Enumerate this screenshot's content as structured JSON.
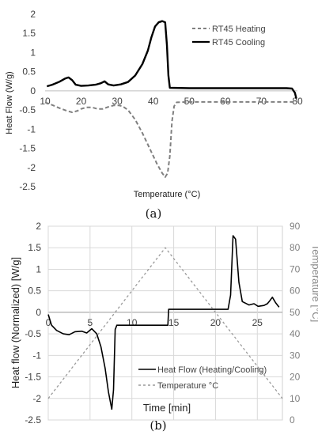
{
  "chart_data": [
    {
      "panel": "(a)",
      "type": "line",
      "xlabel": "Temperature (°C)",
      "ylabel": "Heat Flow (W/g)",
      "xlim": [
        10,
        80
      ],
      "ylim": [
        -2.5,
        2
      ],
      "x_ticks": [
        "10",
        "20",
        "30",
        "40",
        "50",
        "60",
        "70",
        "80"
      ],
      "y_ticks": [
        "2",
        "1.5",
        "1",
        "0.5",
        "0",
        "-0.5",
        "-1",
        "-1.5",
        "-2",
        "-2.5"
      ],
      "legend_position": "top-right",
      "series": [
        {
          "name": "RT45 Heating",
          "style": "dashed",
          "color": "#808080",
          "points": [
            [
              10,
              -0.3
            ],
            [
              12,
              -0.37
            ],
            [
              14,
              -0.45
            ],
            [
              16,
              -0.52
            ],
            [
              17.5,
              -0.56
            ],
            [
              19,
              -0.52
            ],
            [
              20,
              -0.47
            ],
            [
              21.5,
              -0.43
            ],
            [
              23,
              -0.43
            ],
            [
              24.5,
              -0.47
            ],
            [
              26,
              -0.47
            ],
            [
              27.5,
              -0.42
            ],
            [
              29,
              -0.38
            ],
            [
              30.5,
              -0.38
            ],
            [
              31.5,
              -0.4
            ],
            [
              33,
              -0.5
            ],
            [
              35,
              -0.75
            ],
            [
              37,
              -1.1
            ],
            [
              39,
              -1.5
            ],
            [
              41,
              -1.9
            ],
            [
              42.5,
              -2.15
            ],
            [
              43.3,
              -2.25
            ],
            [
              44,
              -2.15
            ],
            [
              44.6,
              -1.7
            ],
            [
              45.2,
              -0.8
            ],
            [
              45.8,
              -0.4
            ],
            [
              46.5,
              -0.3
            ],
            [
              50,
              -0.29
            ],
            [
              60,
              -0.29
            ],
            [
              70,
              -0.29
            ],
            [
              80,
              -0.29
            ]
          ]
        },
        {
          "name": "RT45 Cooling",
          "style": "solid",
          "color": "#000000",
          "points": [
            [
              10.5,
              0.12
            ],
            [
              12,
              0.16
            ],
            [
              14,
              0.24
            ],
            [
              15.5,
              0.32
            ],
            [
              16.5,
              0.35
            ],
            [
              17.5,
              0.28
            ],
            [
              18.5,
              0.16
            ],
            [
              20,
              0.13
            ],
            [
              22,
              0.14
            ],
            [
              24,
              0.16
            ],
            [
              25.5,
              0.2
            ],
            [
              26.5,
              0.25
            ],
            [
              27.5,
              0.17
            ],
            [
              29,
              0.14
            ],
            [
              31,
              0.17
            ],
            [
              33,
              0.23
            ],
            [
              35,
              0.4
            ],
            [
              37,
              0.7
            ],
            [
              38.5,
              1.05
            ],
            [
              39.5,
              1.4
            ],
            [
              40.5,
              1.68
            ],
            [
              41.5,
              1.79
            ],
            [
              42.5,
              1.82
            ],
            [
              43.3,
              1.79
            ],
            [
              43.8,
              1.2
            ],
            [
              44.2,
              0.4
            ],
            [
              44.6,
              0.08
            ],
            [
              50,
              0.07
            ],
            [
              60,
              0.07
            ],
            [
              70,
              0.07
            ],
            [
              77,
              0.07
            ],
            [
              78.5,
              0.06
            ],
            [
              79.3,
              -0.05
            ],
            [
              79.7,
              -0.2
            ]
          ]
        }
      ]
    },
    {
      "panel": "(b)",
      "type": "line",
      "xlabel": "Time [min]",
      "ylabel": "Heat flow (Normalized)  [W/g]",
      "y2label": "Temperature [°C]",
      "xlim": [
        0,
        28
      ],
      "ylim": [
        -2.5,
        2
      ],
      "y2lim": [
        0,
        90
      ],
      "grid": true,
      "x_ticks": [
        "0",
        "5",
        "10",
        "15",
        "20",
        "25"
      ],
      "y_ticks": [
        "2",
        "1.5",
        "1",
        "0.5",
        "0",
        "-0.5",
        "-1",
        "-1.5",
        "-2",
        "-2.5"
      ],
      "y2_ticks": [
        "90",
        "80",
        "70",
        "60",
        "50",
        "40",
        "30",
        "20",
        "10",
        "0"
      ],
      "legend_position": "bottom-right",
      "series": [
        {
          "name": "Heat Flow (Heating/Cooling)",
          "style": "solid",
          "color": "#000000",
          "axis": "left",
          "points": [
            [
              0,
              -0.05
            ],
            [
              0.4,
              -0.3
            ],
            [
              1,
              -0.42
            ],
            [
              1.8,
              -0.5
            ],
            [
              2.5,
              -0.52
            ],
            [
              3.2,
              -0.45
            ],
            [
              4,
              -0.44
            ],
            [
              4.6,
              -0.48
            ],
            [
              5.2,
              -0.38
            ],
            [
              5.8,
              -0.5
            ],
            [
              6.3,
              -0.8
            ],
            [
              6.8,
              -1.3
            ],
            [
              7.2,
              -1.85
            ],
            [
              7.6,
              -2.25
            ],
            [
              7.8,
              -1.8
            ],
            [
              8,
              -0.4
            ],
            [
              8.2,
              -0.3
            ],
            [
              10,
              -0.3
            ],
            [
              12,
              -0.3
            ],
            [
              14.3,
              -0.3
            ],
            [
              14.4,
              0.07
            ],
            [
              16,
              0.07
            ],
            [
              18,
              0.07
            ],
            [
              20,
              0.07
            ],
            [
              21.5,
              0.07
            ],
            [
              21.8,
              0.4
            ],
            [
              22.1,
              1.78
            ],
            [
              22.4,
              1.7
            ],
            [
              22.8,
              0.7
            ],
            [
              23.2,
              0.25
            ],
            [
              24,
              0.17
            ],
            [
              24.6,
              0.2
            ],
            [
              25.1,
              0.14
            ],
            [
              25.8,
              0.16
            ],
            [
              26.2,
              0.2
            ],
            [
              26.5,
              0.27
            ],
            [
              26.8,
              0.35
            ],
            [
              27.2,
              0.22
            ],
            [
              27.6,
              0.12
            ]
          ]
        },
        {
          "name": "Temperature °C",
          "style": "dashed",
          "color": "#9a9a9a",
          "axis": "right",
          "points": [
            [
              0,
              10
            ],
            [
              14,
              80
            ],
            [
              28,
              10
            ]
          ]
        }
      ]
    }
  ],
  "panel_labels": [
    "(a)",
    "(b)"
  ],
  "legend_a": [
    "RT45 Heating",
    "RT45 Cooling"
  ],
  "legend_b": [
    "Heat Flow (Heating/Cooling)",
    "Temperature °C"
  ]
}
